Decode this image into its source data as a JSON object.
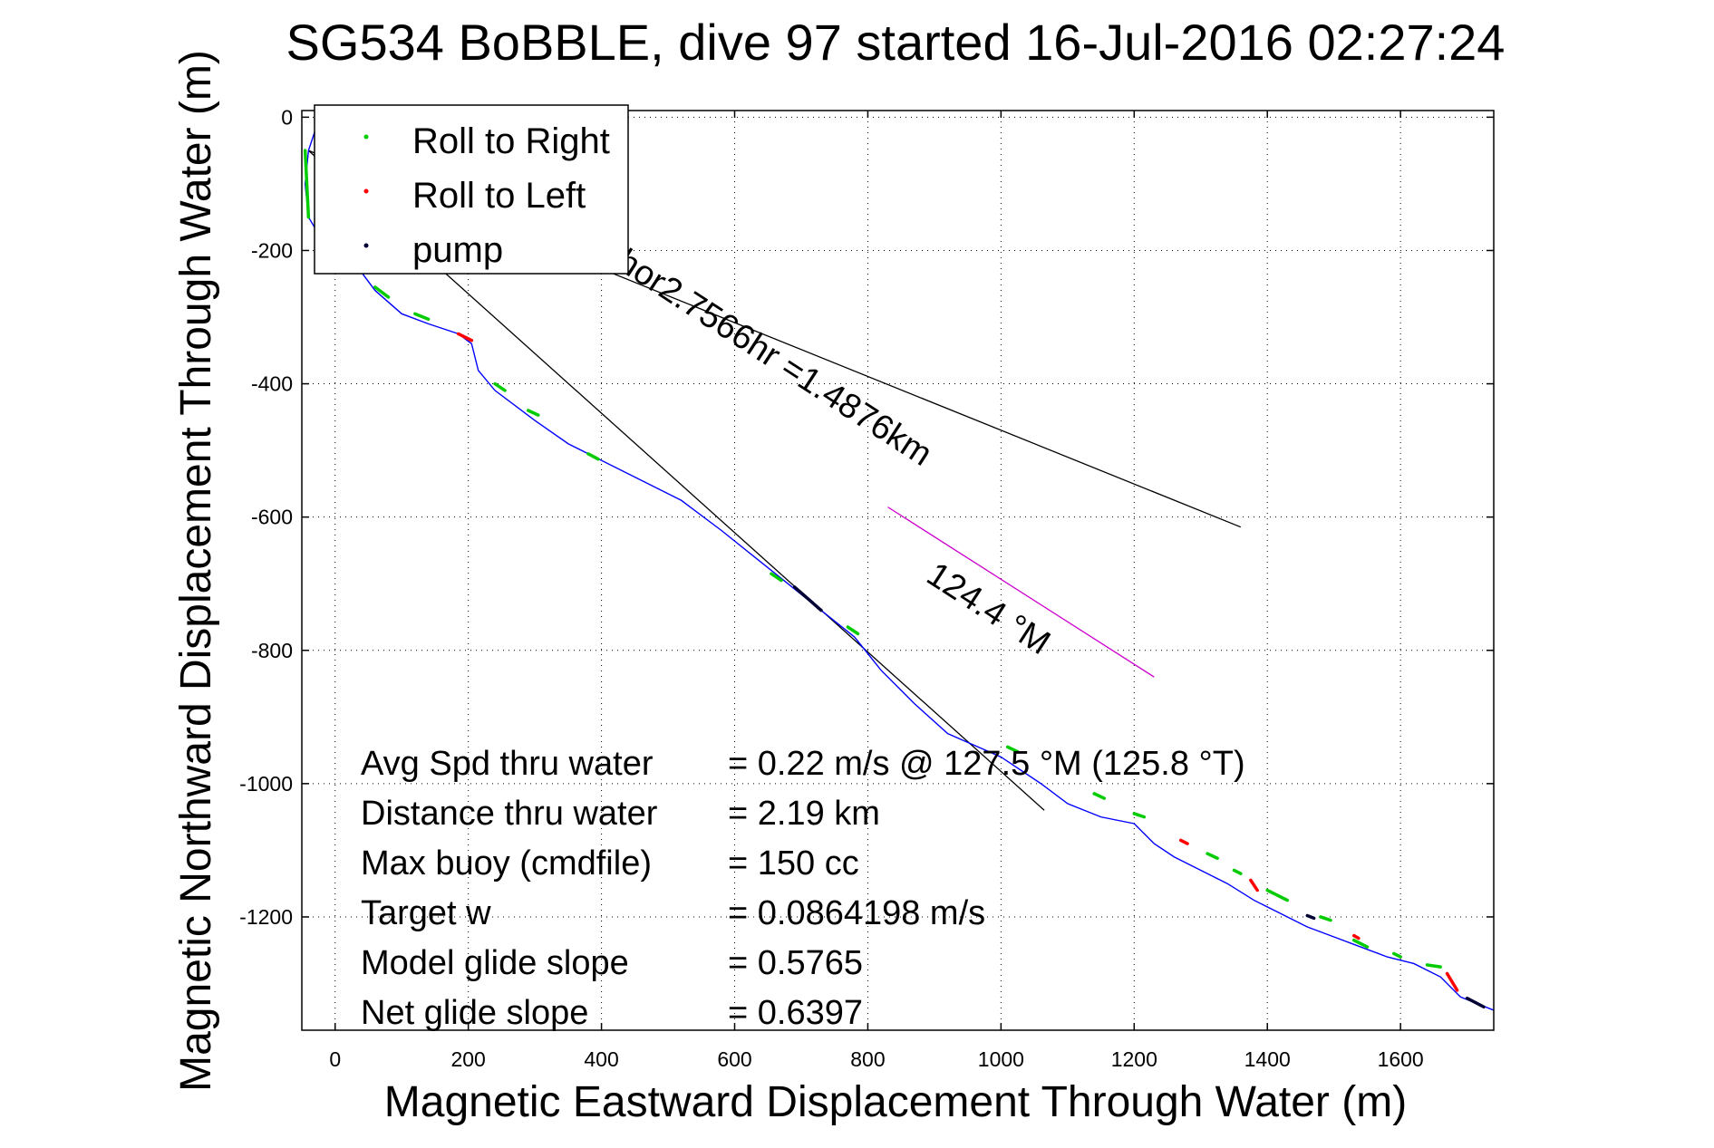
{
  "chart_data": {
    "type": "line",
    "title": "SG534 BoBBLE, dive 97 started 16-Jul-2016 02:27:24",
    "xlabel": "Magnetic Eastward Displacement Through Water (m)",
    "ylabel": "Magnetic Northward Displacement Through Water (m)",
    "xlim": [
      -50,
      1740
    ],
    "ylim": [
      -1370,
      10
    ],
    "grid": true,
    "legend_position": "top-left",
    "x_ticks": [
      0,
      200,
      400,
      600,
      800,
      1000,
      1200,
      1400,
      1600
    ],
    "x_tick_labels": [
      "0",
      "200",
      "400",
      "600",
      "800",
      "1000",
      "1200",
      "1400",
      "1600"
    ],
    "y_ticks": [
      0,
      -200,
      -400,
      -600,
      -800,
      -1000,
      -1200
    ],
    "y_tick_labels": [
      "0",
      "-200",
      "-400",
      "-600",
      "-800",
      "-1000",
      "-1200"
    ],
    "legend": [
      {
        "label": "Roll to Right",
        "color": "#00cc00"
      },
      {
        "label": "Roll to Left",
        "color": "#ff0000"
      },
      {
        "label": "pump",
        "color": "#000033"
      }
    ],
    "track": {
      "color": "#0000ff",
      "x": [
        -30,
        -40,
        -45,
        -40,
        -25,
        -5,
        30,
        60,
        100,
        140,
        185,
        205,
        215,
        240,
        300,
        350,
        400,
        450,
        520,
        580,
        630,
        680,
        730,
        780,
        820,
        870,
        920,
        1000,
        1060,
        1100,
        1150,
        1200,
        1230,
        1260,
        1300,
        1340,
        1380,
        1420,
        1460,
        1500,
        1540,
        1580,
        1620,
        1660,
        1690,
        1740
      ],
      "y": [
        -20,
        -50,
        -100,
        -150,
        -175,
        -190,
        -220,
        -260,
        -295,
        -310,
        -325,
        -340,
        -380,
        -410,
        -455,
        -490,
        -515,
        -540,
        -575,
        -620,
        -660,
        -700,
        -740,
        -780,
        -830,
        -880,
        -925,
        -960,
        -1000,
        -1030,
        -1050,
        -1060,
        -1090,
        -1110,
        -1130,
        -1150,
        -1175,
        -1195,
        -1215,
        -1230,
        -1245,
        -1260,
        -1270,
        -1290,
        -1320,
        -1340
      ]
    },
    "roll_right_segments": [
      [
        [
          -45,
          -50
        ],
        [
          -40,
          -150
        ]
      ],
      [
        [
          60,
          -255
        ],
        [
          80,
          -270
        ]
      ],
      [
        [
          120,
          -295
        ],
        [
          140,
          -303
        ]
      ],
      [
        [
          240,
          -400
        ],
        [
          255,
          -410
        ]
      ],
      [
        [
          290,
          -440
        ],
        [
          305,
          -447
        ]
      ],
      [
        [
          380,
          -505
        ],
        [
          395,
          -513
        ]
      ],
      [
        [
          655,
          -685
        ],
        [
          670,
          -695
        ]
      ],
      [
        [
          770,
          -765
        ],
        [
          785,
          -775
        ]
      ],
      [
        [
          1010,
          -945
        ],
        [
          1025,
          -952
        ]
      ],
      [
        [
          1140,
          -1015
        ],
        [
          1155,
          -1022
        ]
      ],
      [
        [
          1200,
          -1045
        ],
        [
          1215,
          -1050
        ]
      ],
      [
        [
          1310,
          -1105
        ],
        [
          1325,
          -1112
        ]
      ],
      [
        [
          1350,
          -1130
        ],
        [
          1360,
          -1135
        ]
      ],
      [
        [
          1400,
          -1160
        ],
        [
          1430,
          -1175
        ]
      ],
      [
        [
          1480,
          -1200
        ],
        [
          1495,
          -1205
        ]
      ],
      [
        [
          1530,
          -1235
        ],
        [
          1550,
          -1245
        ]
      ],
      [
        [
          1590,
          -1255
        ],
        [
          1600,
          -1260
        ]
      ],
      [
        [
          1640,
          -1272
        ],
        [
          1660,
          -1275
        ]
      ]
    ],
    "roll_left_segments": [
      [
        [
          185,
          -325
        ],
        [
          205,
          -335
        ]
      ],
      [
        [
          1270,
          -1085
        ],
        [
          1280,
          -1090
        ]
      ],
      [
        [
          1375,
          -1145
        ],
        [
          1385,
          -1160
        ]
      ],
      [
        [
          1530,
          -1228
        ],
        [
          1537,
          -1232
        ]
      ],
      [
        [
          1670,
          -1285
        ],
        [
          1685,
          -1310
        ]
      ]
    ],
    "pump_segments": [
      [
        [
          690,
          -705
        ],
        [
          730,
          -740
        ]
      ],
      [
        [
          1460,
          -1198
        ],
        [
          1470,
          -1202
        ]
      ],
      [
        [
          1700,
          -1322
        ],
        [
          1725,
          -1335
        ]
      ]
    ],
    "lines": [
      {
        "name": "",
        "color": "#000000",
        "x": [
          -40,
          1360
        ],
        "y": [
          -50,
          -615
        ]
      },
      {
        "name": "",
        "color": "#000000",
        "x": [
          -40,
          1065
        ],
        "y": [
          -50,
          -1040
        ]
      },
      {
        "name": "",
        "color": "#cc00cc",
        "x": [
          830,
          1230
        ],
        "y": [
          -585,
          -840
        ]
      }
    ],
    "annotations": [
      {
        "text": "hor2.7566hr =1.4876km",
        "x": 420,
        "y": -225,
        "angle": 33
      },
      {
        "text": "124.4 °M",
        "x": 885,
        "y": -695,
        "angle": 33
      }
    ],
    "stats": [
      {
        "label": "Avg Spd thru water",
        "value": "=  0.22 m/s @ 127.5 °M (125.8 °T)"
      },
      {
        "label": "Distance thru water",
        "value": "=  2.19 km"
      },
      {
        "label": "Max buoy (cmdfile)",
        "value": "= 150 cc"
      },
      {
        "label": "Target w",
        "value": "= 0.0864198 m/s"
      },
      {
        "label": "Model glide slope",
        "value": "= 0.5765"
      },
      {
        "label": "Net glide slope",
        "value": "= 0.6397"
      }
    ]
  }
}
